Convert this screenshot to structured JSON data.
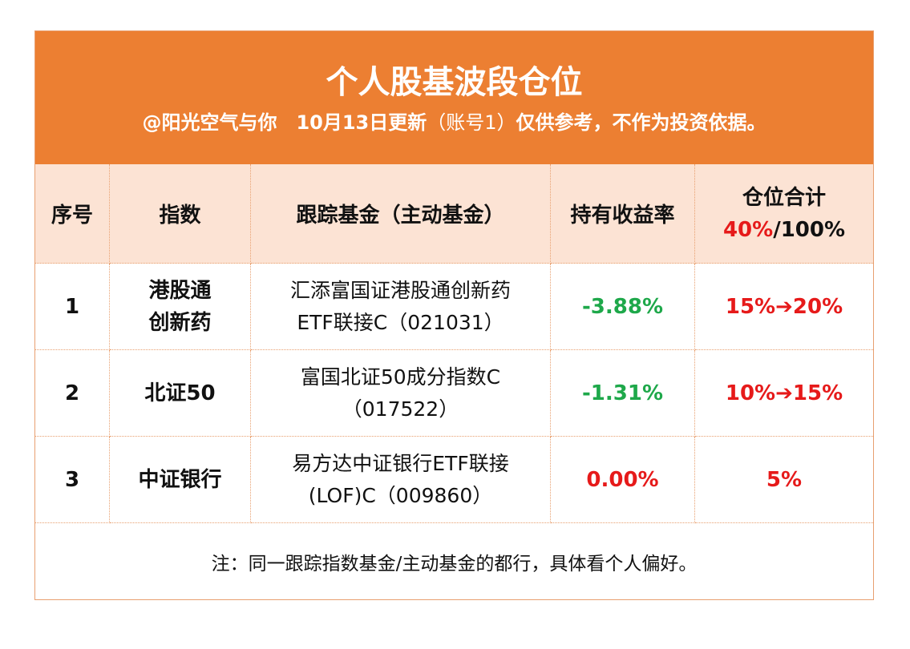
{
  "header": {
    "title": "个人股基波段仓位",
    "subtitle_bold_1": "@阳光空气与你　10月13日更新",
    "subtitle_light": "（账号1）",
    "subtitle_bold_2": "仅供参考，不作为投资依据。"
  },
  "columns": {
    "seq": "序号",
    "index": "指数",
    "fund": "跟踪基金（主动基金）",
    "yield": "持有收益率",
    "position_title": "仓位合计",
    "position_current": "40%",
    "position_sep": "/",
    "position_max": "100%"
  },
  "rows": [
    {
      "seq": "1",
      "index_line1": "港股通",
      "index_line2": "创新药",
      "fund_line1": "汇添富国证港股通创新药",
      "fund_line2": "ETF联接C（021031）",
      "yield": "-3.88%",
      "position": "15%➔20%"
    },
    {
      "seq": "2",
      "index_line1": "北证50",
      "index_line2": "",
      "fund_line1": "富国北证50成分指数C",
      "fund_line2": "（017522）",
      "yield": "-1.31%",
      "position": "10%➔15%"
    },
    {
      "seq": "3",
      "index_line1": "中证银行",
      "index_line2": "",
      "fund_line1": "易方达中证银行ETF联接",
      "fund_line2": "(LOF)C（009860）",
      "yield": "0.00%",
      "position": "5%"
    }
  ],
  "note": "注：同一跟踪指数基金/主动基金的都行，具体看个人偏好。",
  "colors": {
    "header_bg": "#ec7f32",
    "head_row_bg": "#fce3d4",
    "negative": "#1ea84a",
    "positive": "#e61a1a"
  }
}
